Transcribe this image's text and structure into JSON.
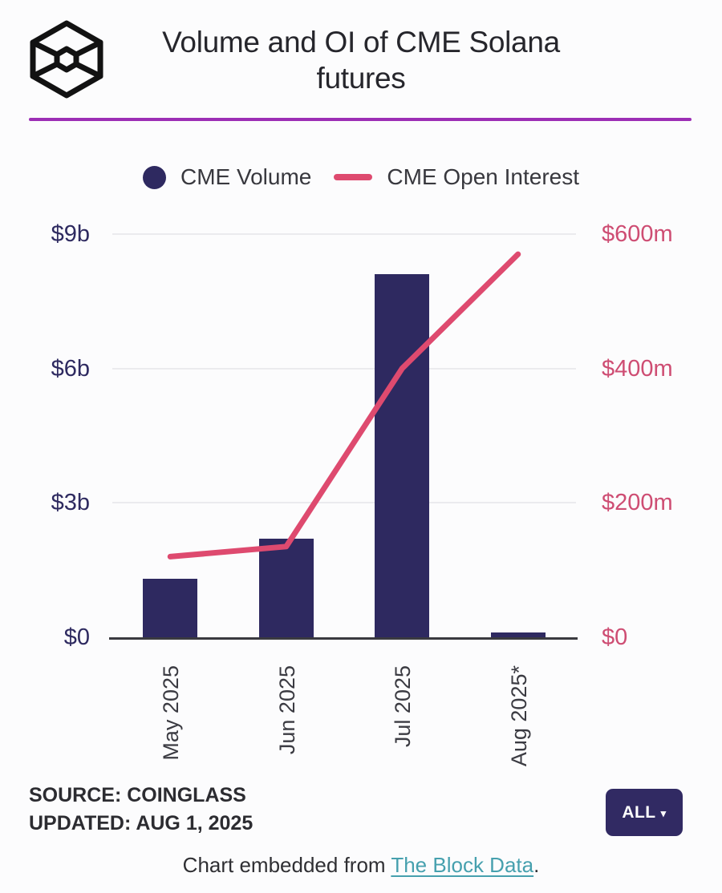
{
  "header": {
    "title": "Volume and OI of CME Solana futures",
    "logo": "the-block-cube-logo"
  },
  "legend": {
    "volume_label": "CME Volume",
    "oi_label": "CME Open Interest"
  },
  "chart_data": {
    "type": "bar",
    "subtype": "bar+line dual-axis",
    "title": "Volume and OI of CME Solana futures",
    "categories": [
      "May 2025",
      "Jun 2025",
      "Jul 2025",
      "Aug 2025*"
    ],
    "series": [
      {
        "name": "CME Volume",
        "type": "bar",
        "axis": "left",
        "unit": "$ billions",
        "values": [
          1.3,
          2.2,
          8.1,
          0.1
        ],
        "color": "#2E2960"
      },
      {
        "name": "CME Open Interest",
        "type": "line",
        "axis": "right",
        "unit": "$ millions",
        "values": [
          120,
          135,
          400,
          570
        ],
        "color": "#DE4A6F"
      }
    ],
    "left_axis": {
      "ticks": [
        {
          "label": "$0",
          "value": 0
        },
        {
          "label": "$3b",
          "value": 3
        },
        {
          "label": "$6b",
          "value": 6
        },
        {
          "label": "$9b",
          "value": 9
        }
      ],
      "max": 9,
      "color": "#2E2A60"
    },
    "right_axis": {
      "ticks": [
        {
          "label": "$0",
          "value": 0
        },
        {
          "label": "$200m",
          "value": 200
        },
        {
          "label": "$400m",
          "value": 400
        },
        {
          "label": "$600m",
          "value": 600
        }
      ],
      "max": 600,
      "color": "#CE4D73"
    },
    "grid": true,
    "legend_position": "top"
  },
  "source": {
    "line1": "SOURCE: COINGLASS",
    "line2": "UPDATED: AUG 1, 2025"
  },
  "range_button": {
    "label": "ALL",
    "caret": "▾"
  },
  "footer": {
    "prefix": "Chart embedded from ",
    "link_text": "The Block Data",
    "suffix": "."
  },
  "colors": {
    "divider": "#9C2EB5",
    "link": "#46A0AE",
    "bar": "#2E2960",
    "line": "#DE4A6F",
    "grid": "#EBEBEE",
    "axis": "#3A3A40",
    "button_bg": "#312A63"
  }
}
